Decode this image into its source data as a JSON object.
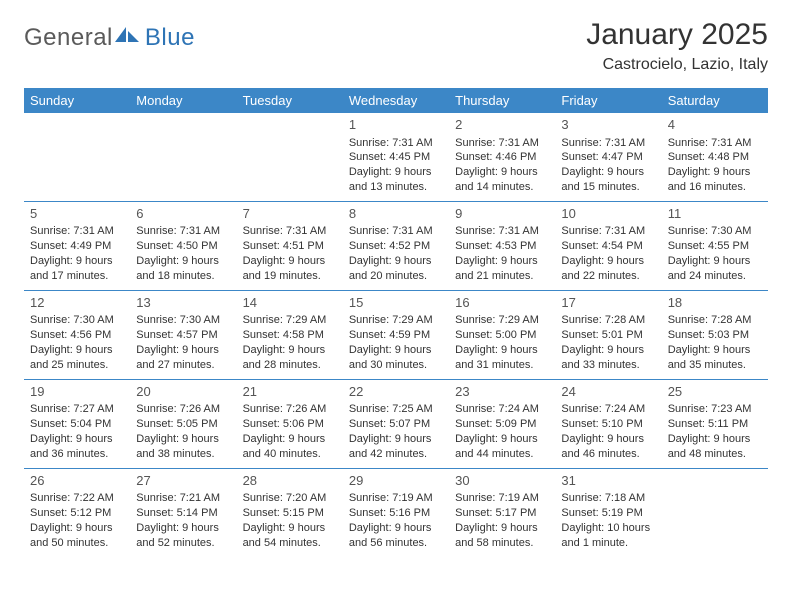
{
  "logo": {
    "general": "General",
    "blue": "Blue"
  },
  "title": "January 2025",
  "location": "Castrocielo, Lazio, Italy",
  "colors": {
    "header_bg": "#3c87c7",
    "header_text": "#ffffff",
    "border": "#3c87c7",
    "text": "#333333",
    "logo_gray": "#5a5a5a",
    "logo_blue": "#2e74b5",
    "background": "#ffffff"
  },
  "weekdays": [
    "Sunday",
    "Monday",
    "Tuesday",
    "Wednesday",
    "Thursday",
    "Friday",
    "Saturday"
  ],
  "weeks": [
    [
      null,
      null,
      null,
      {
        "n": "1",
        "sr": "Sunrise: 7:31 AM",
        "ss": "Sunset: 4:45 PM",
        "d1": "Daylight: 9 hours",
        "d2": "and 13 minutes."
      },
      {
        "n": "2",
        "sr": "Sunrise: 7:31 AM",
        "ss": "Sunset: 4:46 PM",
        "d1": "Daylight: 9 hours",
        "d2": "and 14 minutes."
      },
      {
        "n": "3",
        "sr": "Sunrise: 7:31 AM",
        "ss": "Sunset: 4:47 PM",
        "d1": "Daylight: 9 hours",
        "d2": "and 15 minutes."
      },
      {
        "n": "4",
        "sr": "Sunrise: 7:31 AM",
        "ss": "Sunset: 4:48 PM",
        "d1": "Daylight: 9 hours",
        "d2": "and 16 minutes."
      }
    ],
    [
      {
        "n": "5",
        "sr": "Sunrise: 7:31 AM",
        "ss": "Sunset: 4:49 PM",
        "d1": "Daylight: 9 hours",
        "d2": "and 17 minutes."
      },
      {
        "n": "6",
        "sr": "Sunrise: 7:31 AM",
        "ss": "Sunset: 4:50 PM",
        "d1": "Daylight: 9 hours",
        "d2": "and 18 minutes."
      },
      {
        "n": "7",
        "sr": "Sunrise: 7:31 AM",
        "ss": "Sunset: 4:51 PM",
        "d1": "Daylight: 9 hours",
        "d2": "and 19 minutes."
      },
      {
        "n": "8",
        "sr": "Sunrise: 7:31 AM",
        "ss": "Sunset: 4:52 PM",
        "d1": "Daylight: 9 hours",
        "d2": "and 20 minutes."
      },
      {
        "n": "9",
        "sr": "Sunrise: 7:31 AM",
        "ss": "Sunset: 4:53 PM",
        "d1": "Daylight: 9 hours",
        "d2": "and 21 minutes."
      },
      {
        "n": "10",
        "sr": "Sunrise: 7:31 AM",
        "ss": "Sunset: 4:54 PM",
        "d1": "Daylight: 9 hours",
        "d2": "and 22 minutes."
      },
      {
        "n": "11",
        "sr": "Sunrise: 7:30 AM",
        "ss": "Sunset: 4:55 PM",
        "d1": "Daylight: 9 hours",
        "d2": "and 24 minutes."
      }
    ],
    [
      {
        "n": "12",
        "sr": "Sunrise: 7:30 AM",
        "ss": "Sunset: 4:56 PM",
        "d1": "Daylight: 9 hours",
        "d2": "and 25 minutes."
      },
      {
        "n": "13",
        "sr": "Sunrise: 7:30 AM",
        "ss": "Sunset: 4:57 PM",
        "d1": "Daylight: 9 hours",
        "d2": "and 27 minutes."
      },
      {
        "n": "14",
        "sr": "Sunrise: 7:29 AM",
        "ss": "Sunset: 4:58 PM",
        "d1": "Daylight: 9 hours",
        "d2": "and 28 minutes."
      },
      {
        "n": "15",
        "sr": "Sunrise: 7:29 AM",
        "ss": "Sunset: 4:59 PM",
        "d1": "Daylight: 9 hours",
        "d2": "and 30 minutes."
      },
      {
        "n": "16",
        "sr": "Sunrise: 7:29 AM",
        "ss": "Sunset: 5:00 PM",
        "d1": "Daylight: 9 hours",
        "d2": "and 31 minutes."
      },
      {
        "n": "17",
        "sr": "Sunrise: 7:28 AM",
        "ss": "Sunset: 5:01 PM",
        "d1": "Daylight: 9 hours",
        "d2": "and 33 minutes."
      },
      {
        "n": "18",
        "sr": "Sunrise: 7:28 AM",
        "ss": "Sunset: 5:03 PM",
        "d1": "Daylight: 9 hours",
        "d2": "and 35 minutes."
      }
    ],
    [
      {
        "n": "19",
        "sr": "Sunrise: 7:27 AM",
        "ss": "Sunset: 5:04 PM",
        "d1": "Daylight: 9 hours",
        "d2": "and 36 minutes."
      },
      {
        "n": "20",
        "sr": "Sunrise: 7:26 AM",
        "ss": "Sunset: 5:05 PM",
        "d1": "Daylight: 9 hours",
        "d2": "and 38 minutes."
      },
      {
        "n": "21",
        "sr": "Sunrise: 7:26 AM",
        "ss": "Sunset: 5:06 PM",
        "d1": "Daylight: 9 hours",
        "d2": "and 40 minutes."
      },
      {
        "n": "22",
        "sr": "Sunrise: 7:25 AM",
        "ss": "Sunset: 5:07 PM",
        "d1": "Daylight: 9 hours",
        "d2": "and 42 minutes."
      },
      {
        "n": "23",
        "sr": "Sunrise: 7:24 AM",
        "ss": "Sunset: 5:09 PM",
        "d1": "Daylight: 9 hours",
        "d2": "and 44 minutes."
      },
      {
        "n": "24",
        "sr": "Sunrise: 7:24 AM",
        "ss": "Sunset: 5:10 PM",
        "d1": "Daylight: 9 hours",
        "d2": "and 46 minutes."
      },
      {
        "n": "25",
        "sr": "Sunrise: 7:23 AM",
        "ss": "Sunset: 5:11 PM",
        "d1": "Daylight: 9 hours",
        "d2": "and 48 minutes."
      }
    ],
    [
      {
        "n": "26",
        "sr": "Sunrise: 7:22 AM",
        "ss": "Sunset: 5:12 PM",
        "d1": "Daylight: 9 hours",
        "d2": "and 50 minutes."
      },
      {
        "n": "27",
        "sr": "Sunrise: 7:21 AM",
        "ss": "Sunset: 5:14 PM",
        "d1": "Daylight: 9 hours",
        "d2": "and 52 minutes."
      },
      {
        "n": "28",
        "sr": "Sunrise: 7:20 AM",
        "ss": "Sunset: 5:15 PM",
        "d1": "Daylight: 9 hours",
        "d2": "and 54 minutes."
      },
      {
        "n": "29",
        "sr": "Sunrise: 7:19 AM",
        "ss": "Sunset: 5:16 PM",
        "d1": "Daylight: 9 hours",
        "d2": "and 56 minutes."
      },
      {
        "n": "30",
        "sr": "Sunrise: 7:19 AM",
        "ss": "Sunset: 5:17 PM",
        "d1": "Daylight: 9 hours",
        "d2": "and 58 minutes."
      },
      {
        "n": "31",
        "sr": "Sunrise: 7:18 AM",
        "ss": "Sunset: 5:19 PM",
        "d1": "Daylight: 10 hours",
        "d2": "and 1 minute."
      },
      null
    ]
  ]
}
